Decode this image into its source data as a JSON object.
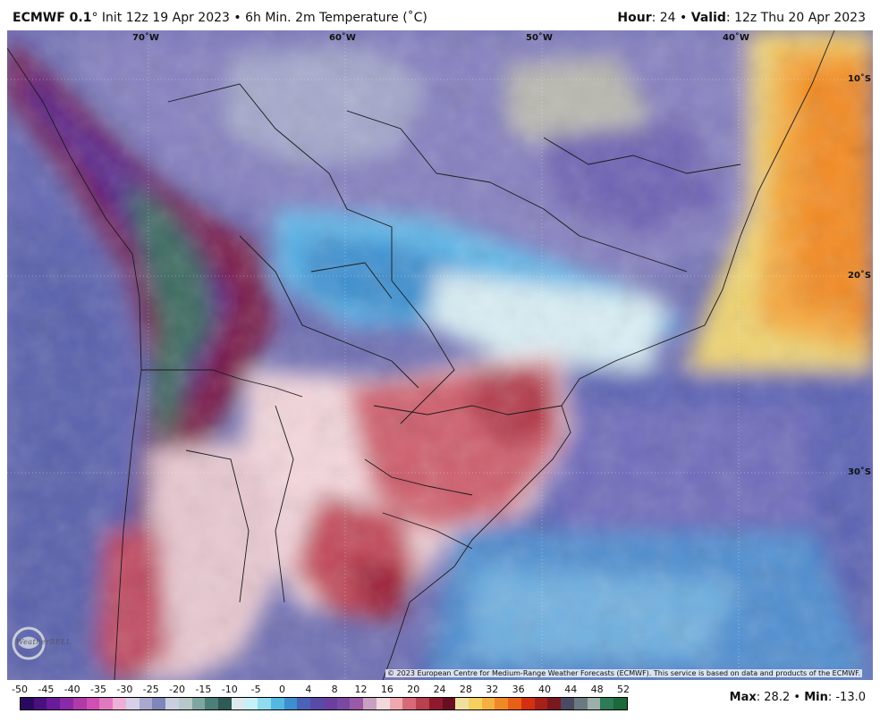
{
  "header": {
    "model": "ECMWF 0.1",
    "degree_sign": "°",
    "init": "Init 12z 19 Apr 2023",
    "bullet": "•",
    "product": "6h Min. 2m Temperature (˚C)",
    "hour_label": "Hour",
    "hour_value": ": 24",
    "valid_label": "Valid",
    "valid_value": ": 12z Thu 20 Apr 2023"
  },
  "map": {
    "longitudes": [
      "70˚W",
      "60˚W",
      "50˚W",
      "40˚W"
    ],
    "latitudes": [
      "10˚S",
      "20˚S",
      "30˚S"
    ],
    "credit": "© 2023 European Centre for Medium-Range Weather Forecasts (ECMWF). This service is based on data and products of the ECMWF.",
    "logo_text": "WeatherBELL"
  },
  "legend": {
    "ticks": [
      "-50",
      "-45",
      "-40",
      "-35",
      "-30",
      "-25",
      "-20",
      "-15",
      "-10",
      "-5",
      "0",
      "4",
      "8",
      "12",
      "16",
      "20",
      "24",
      "28",
      "32",
      "36",
      "40",
      "44",
      "48",
      "52"
    ],
    "colors": [
      "#2a0a5e",
      "#4b1080",
      "#6a1a9a",
      "#8a2aa8",
      "#b03aa8",
      "#d04fb0",
      "#e07ac0",
      "#efb0d8",
      "#d8d0e8",
      "#aaa8cc",
      "#7f86b8",
      "#c9cfe0",
      "#b6c9c8",
      "#7fa7a0",
      "#4d7f78",
      "#2f5a58",
      "#dfe8ec",
      "#c8f0f8",
      "#8fdcef",
      "#55b8e3",
      "#3d8fd0",
      "#4a62b8",
      "#5a4aa8",
      "#6b3f9e",
      "#7a4aa0",
      "#9b5aa8",
      "#c9a0c0",
      "#f0d8dc",
      "#f0a8b0",
      "#d86a78",
      "#b8404f",
      "#8e1a30",
      "#6a0e22",
      "#f0e0a0",
      "#f5d060",
      "#f6b040",
      "#f08828",
      "#e86018",
      "#d43010",
      "#a8201a",
      "#7a1820",
      "#4a4a60",
      "#6a7a80",
      "#9ab0a8",
      "#2e7a5a",
      "#1a6a3a"
    ],
    "max_label": "Max",
    "max_value": ": 28.2",
    "min_label": "Min",
    "min_value": ": -13.0",
    "bullet": "•"
  }
}
